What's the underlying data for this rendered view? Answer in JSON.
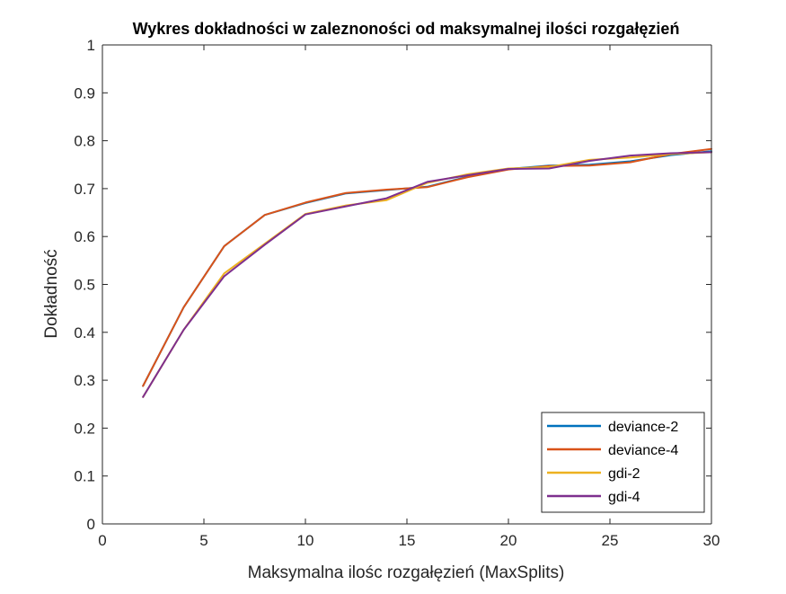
{
  "chart_data": {
    "type": "line",
    "title": "Wykres dokładności w zaleznoności od maksymalnej ilości rozgałęzień",
    "xlabel": "Maksymalna ilośc rozgałęzień (MaxSplits)",
    "ylabel": "Dokładność",
    "xlim": [
      0,
      30
    ],
    "ylim": [
      0,
      1
    ],
    "xticks": [
      "0",
      "5",
      "10",
      "15",
      "20",
      "25",
      "30"
    ],
    "yticks": [
      "0",
      "0.1",
      "0.2",
      "0.3",
      "0.4",
      "0.5",
      "0.6",
      "0.7",
      "0.8",
      "0.9",
      "1"
    ],
    "grid": false,
    "legend_position": "bottom-right",
    "x": [
      2,
      4,
      6,
      8,
      10,
      12,
      14,
      16,
      18,
      20,
      22,
      24,
      26,
      28,
      30
    ],
    "series": [
      {
        "name": "deviance-2",
        "color": "#0072BD",
        "values": [
          0.288,
          0.452,
          0.58,
          0.645,
          0.67,
          0.69,
          0.697,
          0.704,
          0.725,
          0.741,
          0.748,
          0.75,
          0.757,
          0.77,
          0.778
        ]
      },
      {
        "name": "deviance-4",
        "color": "#D95319",
        "values": [
          0.288,
          0.452,
          0.58,
          0.645,
          0.671,
          0.691,
          0.698,
          0.703,
          0.724,
          0.74,
          0.747,
          0.748,
          0.755,
          0.772,
          0.783
        ]
      },
      {
        "name": "gdi-2",
        "color": "#EDB120",
        "values": [
          0.265,
          0.405,
          0.523,
          0.585,
          0.647,
          0.665,
          0.676,
          0.712,
          0.73,
          0.742,
          0.745,
          0.76,
          0.765,
          0.772,
          0.776
        ]
      },
      {
        "name": "gdi-4",
        "color": "#7E2F8E",
        "values": [
          0.265,
          0.405,
          0.517,
          0.583,
          0.646,
          0.663,
          0.68,
          0.714,
          0.728,
          0.741,
          0.742,
          0.758,
          0.769,
          0.774,
          0.776
        ]
      }
    ]
  }
}
